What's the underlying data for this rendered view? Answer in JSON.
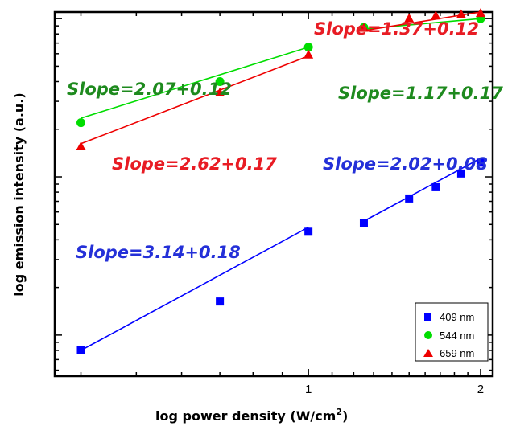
{
  "chart_data": {
    "type": "scatter",
    "xlabel": "log power density (W/cm",
    "xlabel_sup": "2",
    "xlabel_end": ")",
    "ylabel": "log emission intensity (a.u.)",
    "x_scale": "log",
    "y_scale": "log",
    "xlim": [
      0.36,
      2.1
    ],
    "ylim": [
      0.55,
      110
    ],
    "x_ticks": [
      1,
      2
    ],
    "x_tick_labels": [
      "1",
      "2"
    ],
    "y_ticks": [
      1,
      10,
      100
    ],
    "grid": false,
    "legend_position": "bottom-right",
    "series": [
      {
        "name": "409 nm",
        "color": "#0000ff",
        "marker": "square",
        "points": [
          {
            "x": 0.4,
            "y": 0.8
          },
          {
            "x": 0.7,
            "y": 1.63
          },
          {
            "x": 1.0,
            "y": 4.5
          },
          {
            "x": 1.25,
            "y": 5.1
          },
          {
            "x": 1.5,
            "y": 7.3
          },
          {
            "x": 1.67,
            "y": 8.6
          },
          {
            "x": 1.85,
            "y": 10.5
          },
          {
            "x": 2.0,
            "y": 12.3
          }
        ],
        "fits": [
          {
            "x": [
              0.4,
              1.0
            ],
            "y": [
              0.8,
              4.8
            ],
            "slope_label": "Slope=3.14+0.18"
          },
          {
            "x": [
              1.25,
              2.0
            ],
            "y": [
              5.25,
              13.1
            ],
            "slope_label": "Slope=2.02+0.08"
          }
        ]
      },
      {
        "name": "544 nm",
        "color": "#00dd00",
        "marker": "circle",
        "points": [
          {
            "x": 0.4,
            "y": 22
          },
          {
            "x": 0.7,
            "y": 40
          },
          {
            "x": 1.0,
            "y": 66
          },
          {
            "x": 1.25,
            "y": 88
          },
          {
            "x": 2.0,
            "y": 100
          }
        ],
        "fits": [
          {
            "x": [
              0.4,
              1.0
            ],
            "y": [
              23.5,
              66
            ],
            "slope_label": "Slope=2.07+0.12"
          },
          {
            "x": [
              1.25,
              2.0
            ],
            "y": [
              86,
              100
            ],
            "slope_label": "Slope=1.17+0.17"
          }
        ]
      },
      {
        "name": "659 nm",
        "color": "#ee0000",
        "marker": "triangle",
        "points": [
          {
            "x": 0.4,
            "y": 15.5
          },
          {
            "x": 0.7,
            "y": 34
          },
          {
            "x": 1.0,
            "y": 59
          },
          {
            "x": 1.25,
            "y": 87
          },
          {
            "x": 1.5,
            "y": 100
          },
          {
            "x": 1.67,
            "y": 104
          },
          {
            "x": 1.85,
            "y": 106
          },
          {
            "x": 2.0,
            "y": 108
          }
        ],
        "fits": [
          {
            "x": [
              0.4,
              1.0
            ],
            "y": [
              16.2,
              58
            ],
            "slope_label": "Slope=2.62+0.17"
          },
          {
            "x": [
              1.25,
              2.0
            ],
            "y": [
              84,
              110
            ],
            "slope_label": "Slope=1.37+0.12"
          }
        ]
      }
    ]
  }
}
